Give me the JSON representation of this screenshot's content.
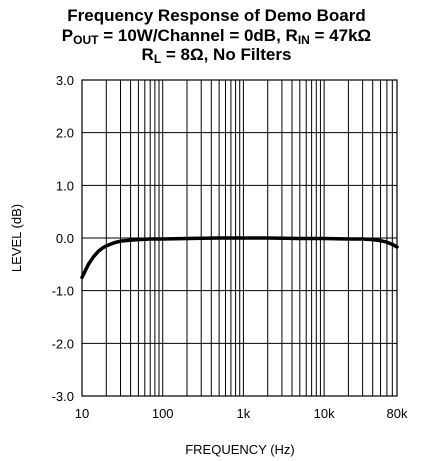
{
  "title": {
    "line1": "Frequency Response of Demo Board",
    "line2": {
      "p": "P",
      "p_sub": "OUT",
      "mid": " = 10W/Channel = 0dB, R",
      "r_sub": "IN",
      "end": " = 47kΩ"
    },
    "line3": {
      "r": "R",
      "r_sub": "L",
      "end": " = 8Ω, No Filters"
    }
  },
  "chart_data": {
    "type": "line",
    "title": "Frequency Response of Demo Board",
    "xlabel": "FREQUENCY (Hz)",
    "ylabel": "LEVEL (dB)",
    "xscale": "log",
    "xlim": [
      10,
      80000
    ],
    "ylim": [
      -3.0,
      3.0
    ],
    "grid": true,
    "x_ticks": [
      {
        "value": 10,
        "label": "10"
      },
      {
        "value": 100,
        "label": "100"
      },
      {
        "value": 1000,
        "label": "1k"
      },
      {
        "value": 10000,
        "label": "10k"
      },
      {
        "value": 80000,
        "label": "80k"
      }
    ],
    "y_ticks": [
      {
        "value": 3.0,
        "label": "3.0"
      },
      {
        "value": 2.0,
        "label": "2.0"
      },
      {
        "value": 1.0,
        "label": "1.0"
      },
      {
        "value": 0.0,
        "label": "0.0"
      },
      {
        "value": -1.0,
        "label": "-1.0"
      },
      {
        "value": -2.0,
        "label": "-2.0"
      },
      {
        "value": -3.0,
        "label": "-3.0"
      }
    ],
    "series": [
      {
        "color": "#000000",
        "points": [
          [
            10,
            -0.75
          ],
          [
            11,
            -0.62
          ],
          [
            12,
            -0.5
          ],
          [
            14,
            -0.35
          ],
          [
            16,
            -0.25
          ],
          [
            18,
            -0.19
          ],
          [
            20,
            -0.15
          ],
          [
            25,
            -0.09
          ],
          [
            30,
            -0.06
          ],
          [
            40,
            -0.04
          ],
          [
            50,
            -0.03
          ],
          [
            70,
            -0.02
          ],
          [
            100,
            -0.02
          ],
          [
            200,
            -0.01
          ],
          [
            500,
            0.0
          ],
          [
            1000,
            0.0
          ],
          [
            2000,
            0.0
          ],
          [
            5000,
            -0.01
          ],
          [
            10000,
            -0.01
          ],
          [
            20000,
            -0.02
          ],
          [
            30000,
            -0.02
          ],
          [
            40000,
            -0.03
          ],
          [
            50000,
            -0.05
          ],
          [
            60000,
            -0.08
          ],
          [
            70000,
            -0.12
          ],
          [
            80000,
            -0.17
          ]
        ]
      }
    ]
  }
}
